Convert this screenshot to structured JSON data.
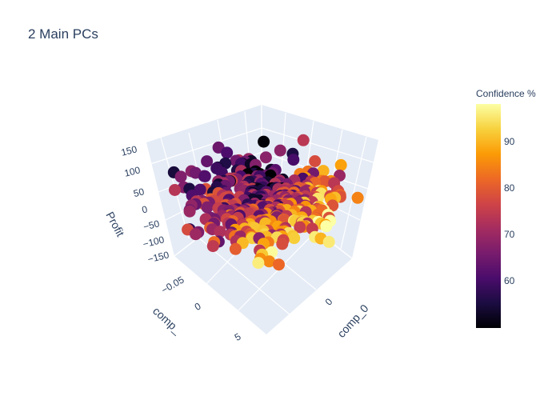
{
  "chart_data": {
    "type": "scatter3d",
    "title": "2 Main PCs",
    "axes": {
      "x": {
        "label": "comp_0",
        "ticks": [
          "0"
        ]
      },
      "y": {
        "label": "comp_",
        "ticks": [
          "−0.05",
          "0",
          "5"
        ]
      },
      "z": {
        "label": "Profit",
        "ticks": [
          "150",
          "100",
          "50",
          "0",
          "−50",
          "−100",
          "−150"
        ]
      }
    },
    "colorbar": {
      "title": "Confidence %",
      "ticks": [
        "90",
        "80",
        "70",
        "60"
      ],
      "range": [
        50,
        99
      ],
      "colorscale": "Inferno"
    },
    "point_count": 420,
    "grid": true,
    "background": "#e5ecf6"
  }
}
